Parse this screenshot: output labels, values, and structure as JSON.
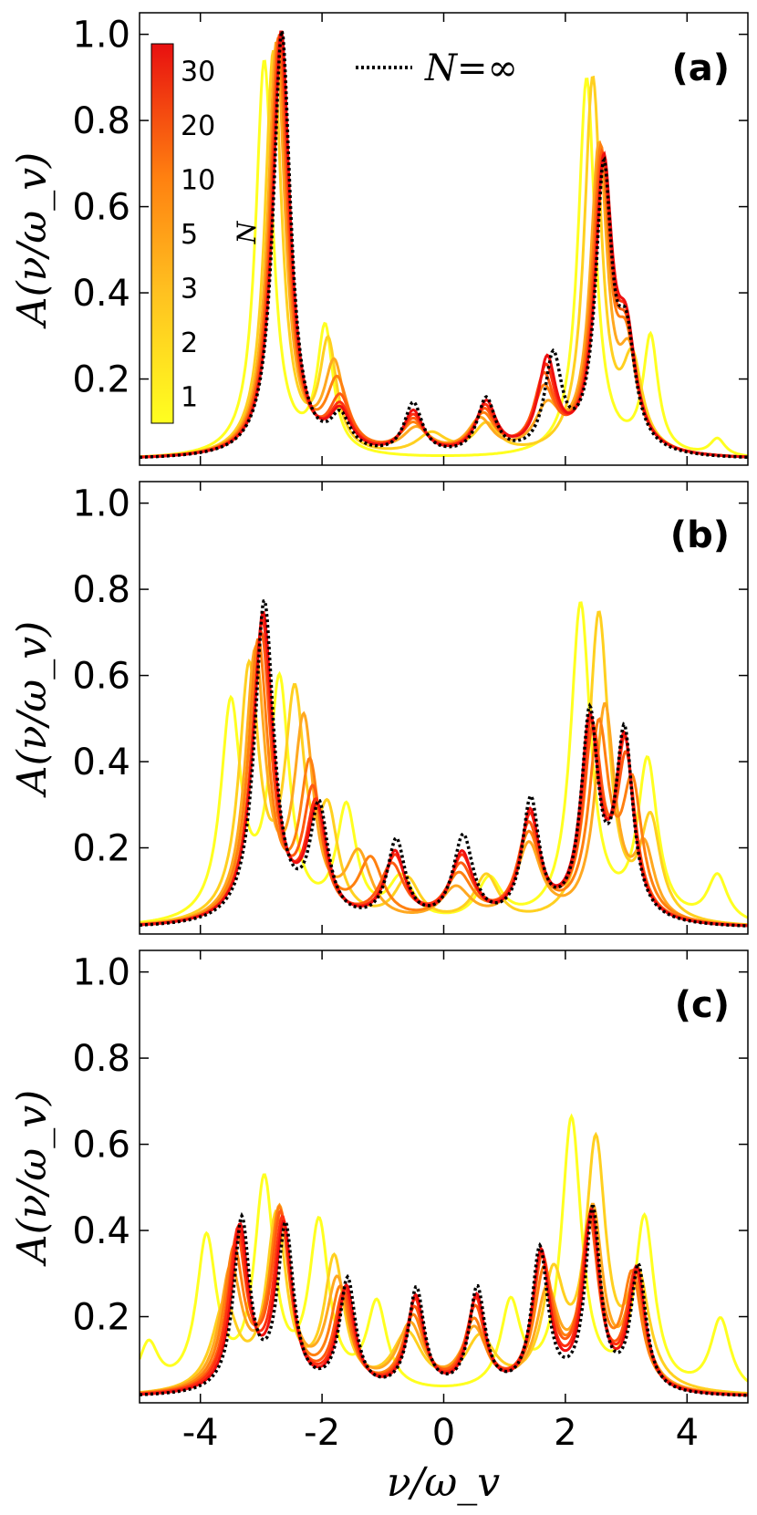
{
  "chart_data": {
    "type": "line",
    "xlabel": "ν/ω_v",
    "ylabel": "A(ν/ω_v)",
    "xlim": [
      -5,
      5
    ],
    "ylim": [
      0,
      1.05
    ],
    "xticks": [
      -4,
      -2,
      0,
      2,
      4
    ],
    "xtick_labels": [
      "-4",
      "-2",
      "0",
      "2",
      "4"
    ],
    "yticks": [
      0.2,
      0.4,
      0.6,
      0.8,
      1.0
    ],
    "ytick_labels": [
      "0.2",
      "0.4",
      "0.6",
      "0.8",
      "1.0"
    ],
    "colorbar": {
      "title": "N",
      "labels": [
        "1",
        "2",
        "3",
        "5",
        "10",
        "20",
        "30"
      ],
      "colors": [
        "#ffff20",
        "#ffd020",
        "#ffa820",
        "#ff8010",
        "#ff5a10",
        "#ff3010",
        "#ee1010"
      ]
    },
    "series_names": [
      "N=1",
      "N=2",
      "N=3",
      "N=5",
      "N=10",
      "N=20",
      "N=30",
      "N=∞"
    ],
    "legend": {
      "label": "N=∞",
      "position": "top-center"
    },
    "panels": [
      {
        "label": "(a)",
        "peaks": [
          [
            [
              -2.95,
              0.92,
              0.17
            ],
            [
              -1.95,
              0.29,
              0.16
            ],
            [
              2.35,
              0.88,
              0.17
            ],
            [
              3.4,
              0.27,
              0.15
            ],
            [
              4.5,
              0.04,
              0.15
            ]
          ],
          [
            [
              -2.8,
              0.94,
              0.17
            ],
            [
              -1.9,
              0.25,
              0.17
            ],
            [
              -0.2,
              0.05,
              0.3
            ],
            [
              0.7,
              0.07,
              0.25
            ],
            [
              2.45,
              0.87,
              0.17
            ],
            [
              3.1,
              0.2,
              0.2
            ]
          ],
          [
            [
              -2.75,
              0.96,
              0.17
            ],
            [
              -1.8,
              0.2,
              0.2
            ],
            [
              -0.45,
              0.06,
              0.28
            ],
            [
              0.6,
              0.08,
              0.25
            ],
            [
              1.7,
              0.1,
              0.25
            ],
            [
              2.55,
              0.7,
              0.17
            ],
            [
              3.05,
              0.2,
              0.2
            ]
          ],
          [
            [
              -2.72,
              0.97,
              0.17
            ],
            [
              -1.75,
              0.16,
              0.22
            ],
            [
              -0.5,
              0.07,
              0.26
            ],
            [
              0.65,
              0.09,
              0.24
            ],
            [
              1.65,
              0.14,
              0.22
            ],
            [
              2.58,
              0.68,
              0.17
            ],
            [
              3.0,
              0.22,
              0.2
            ]
          ],
          [
            [
              -2.7,
              0.98,
              0.17
            ],
            [
              -1.7,
              0.12,
              0.22
            ],
            [
              -0.5,
              0.08,
              0.24
            ],
            [
              0.67,
              0.1,
              0.22
            ],
            [
              1.65,
              0.17,
              0.2
            ],
            [
              2.6,
              0.66,
              0.17
            ],
            [
              3.0,
              0.23,
              0.2
            ]
          ],
          [
            [
              -2.68,
              0.98,
              0.17
            ],
            [
              -1.7,
              0.1,
              0.22
            ],
            [
              -0.5,
              0.09,
              0.22
            ],
            [
              0.68,
              0.11,
              0.21
            ],
            [
              1.68,
              0.19,
              0.19
            ],
            [
              2.62,
              0.65,
              0.17
            ],
            [
              3.0,
              0.24,
              0.19
            ]
          ],
          [
            [
              -2.67,
              0.99,
              0.17
            ],
            [
              -1.7,
              0.09,
              0.22
            ],
            [
              -0.5,
              0.1,
              0.2
            ],
            [
              0.7,
              0.12,
              0.2
            ],
            [
              1.7,
              0.21,
              0.18
            ],
            [
              2.63,
              0.65,
              0.17
            ],
            [
              3.0,
              0.24,
              0.19
            ]
          ],
          [
            [
              -2.66,
              0.99,
              0.17
            ],
            [
              -1.7,
              0.08,
              0.2
            ],
            [
              -0.5,
              0.12,
              0.18
            ],
            [
              0.7,
              0.13,
              0.18
            ],
            [
              1.8,
              0.22,
              0.17
            ],
            [
              2.63,
              0.64,
              0.16
            ],
            [
              3.0,
              0.24,
              0.18
            ]
          ]
        ]
      },
      {
        "label": "(b)",
        "peaks": [
          [
            [
              -3.5,
              0.5,
              0.2
            ],
            [
              -2.7,
              0.55,
              0.2
            ],
            [
              -1.6,
              0.26,
              0.2
            ],
            [
              -0.7,
              0.1,
              0.25
            ],
            [
              0.75,
              0.1,
              0.25
            ],
            [
              2.25,
              0.74,
              0.2
            ],
            [
              3.35,
              0.37,
              0.2
            ],
            [
              4.5,
              0.11,
              0.2
            ]
          ],
          [
            [
              -3.2,
              0.58,
              0.2
            ],
            [
              -2.45,
              0.5,
              0.2
            ],
            [
              -1.9,
              0.22,
              0.2
            ],
            [
              -0.6,
              0.1,
              0.25
            ],
            [
              0.7,
              0.11,
              0.25
            ],
            [
              2.55,
              0.72,
              0.2
            ],
            [
              3.4,
              0.23,
              0.2
            ]
          ],
          [
            [
              -3.1,
              0.62,
              0.2
            ],
            [
              -2.3,
              0.45,
              0.2
            ],
            [
              -1.4,
              0.15,
              0.25
            ],
            [
              0.2,
              0.08,
              0.3
            ],
            [
              1.4,
              0.18,
              0.25
            ],
            [
              2.65,
              0.5,
              0.2
            ],
            [
              3.3,
              0.16,
              0.2
            ]
          ],
          [
            [
              -3.05,
              0.65,
              0.2
            ],
            [
              -2.2,
              0.35,
              0.2
            ],
            [
              -1.2,
              0.14,
              0.25
            ],
            [
              0.25,
              0.11,
              0.28
            ],
            [
              1.4,
              0.2,
              0.24
            ],
            [
              2.55,
              0.44,
              0.2
            ],
            [
              3.1,
              0.3,
              0.2
            ]
          ],
          [
            [
              -3.0,
              0.67,
              0.2
            ],
            [
              -2.15,
              0.29,
              0.2
            ],
            [
              -0.85,
              0.13,
              0.25
            ],
            [
              0.28,
              0.13,
              0.26
            ],
            [
              1.4,
              0.22,
              0.22
            ],
            [
              2.45,
              0.42,
              0.19
            ],
            [
              3.0,
              0.36,
              0.19
            ]
          ],
          [
            [
              -2.98,
              0.7,
              0.2
            ],
            [
              -2.1,
              0.26,
              0.2
            ],
            [
              -0.8,
              0.15,
              0.22
            ],
            [
              0.3,
              0.15,
              0.24
            ],
            [
              1.42,
              0.24,
              0.2
            ],
            [
              2.42,
              0.44,
              0.18
            ],
            [
              2.98,
              0.4,
              0.18
            ]
          ],
          [
            [
              -2.97,
              0.72,
              0.2
            ],
            [
              -2.08,
              0.25,
              0.2
            ],
            [
              -0.8,
              0.16,
              0.2
            ],
            [
              0.3,
              0.16,
              0.22
            ],
            [
              1.42,
              0.25,
              0.19
            ],
            [
              2.4,
              0.45,
              0.18
            ],
            [
              2.97,
              0.41,
              0.18
            ]
          ],
          [
            [
              -2.95,
              0.75,
              0.19
            ],
            [
              -2.05,
              0.26,
              0.18
            ],
            [
              -0.78,
              0.19,
              0.18
            ],
            [
              0.32,
              0.2,
              0.2
            ],
            [
              1.43,
              0.28,
              0.17
            ],
            [
              2.4,
              0.47,
              0.17
            ],
            [
              2.97,
              0.43,
              0.17
            ]
          ]
        ]
      },
      {
        "label": "(c)",
        "peaks": [
          [
            [
              -4.85,
              0.11,
              0.2
            ],
            [
              -3.9,
              0.35,
              0.2
            ],
            [
              -2.95,
              0.48,
              0.2
            ],
            [
              -2.05,
              0.38,
              0.2
            ],
            [
              -1.1,
              0.2,
              0.2
            ],
            [
              1.1,
              0.2,
              0.2
            ],
            [
              2.1,
              0.63,
              0.2
            ],
            [
              3.3,
              0.4,
              0.2
            ],
            [
              4.55,
              0.17,
              0.2
            ]
          ],
          [
            [
              -3.6,
              0.2,
              0.25
            ],
            [
              -2.75,
              0.4,
              0.2
            ],
            [
              -1.8,
              0.3,
              0.2
            ],
            [
              -0.6,
              0.13,
              0.3
            ],
            [
              0.6,
              0.12,
              0.3
            ],
            [
              1.8,
              0.25,
              0.22
            ],
            [
              2.5,
              0.56,
              0.2
            ],
            [
              3.2,
              0.25,
              0.22
            ]
          ],
          [
            [
              -3.5,
              0.28,
              0.22
            ],
            [
              -2.7,
              0.41,
              0.2
            ],
            [
              -1.75,
              0.25,
              0.22
            ],
            [
              -0.55,
              0.15,
              0.26
            ],
            [
              0.5,
              0.14,
              0.26
            ],
            [
              1.7,
              0.22,
              0.22
            ],
            [
              2.45,
              0.41,
              0.2
            ],
            [
              3.15,
              0.23,
              0.2
            ]
          ],
          [
            [
              -3.45,
              0.32,
              0.2
            ],
            [
              -2.7,
              0.41,
              0.2
            ],
            [
              -1.7,
              0.23,
              0.2
            ],
            [
              -0.5,
              0.17,
              0.22
            ],
            [
              0.5,
              0.16,
              0.22
            ],
            [
              1.65,
              0.27,
              0.2
            ],
            [
              2.42,
              0.38,
              0.19
            ],
            [
              3.1,
              0.26,
              0.19
            ]
          ],
          [
            [
              -3.4,
              0.35,
              0.19
            ],
            [
              -2.68,
              0.4,
              0.19
            ],
            [
              -1.65,
              0.22,
              0.19
            ],
            [
              -0.48,
              0.19,
              0.2
            ],
            [
              0.52,
              0.19,
              0.2
            ],
            [
              1.62,
              0.3,
              0.19
            ],
            [
              2.4,
              0.38,
              0.18
            ],
            [
              3.15,
              0.27,
              0.18
            ]
          ],
          [
            [
              -3.38,
              0.37,
              0.18
            ],
            [
              -2.65,
              0.39,
              0.18
            ],
            [
              -1.62,
              0.23,
              0.18
            ],
            [
              -0.47,
              0.21,
              0.18
            ],
            [
              0.53,
              0.21,
              0.18
            ],
            [
              1.6,
              0.31,
              0.18
            ],
            [
              2.42,
              0.4,
              0.17
            ],
            [
              3.17,
              0.28,
              0.17
            ]
          ],
          [
            [
              -3.35,
              0.38,
              0.17
            ],
            [
              -2.63,
              0.38,
              0.17
            ],
            [
              -1.6,
              0.24,
              0.17
            ],
            [
              -0.46,
              0.22,
              0.17
            ],
            [
              0.54,
              0.22,
              0.17
            ],
            [
              1.6,
              0.32,
              0.17
            ],
            [
              2.43,
              0.41,
              0.16
            ],
            [
              3.18,
              0.28,
              0.16
            ]
          ],
          [
            [
              -3.32,
              0.4,
              0.16
            ],
            [
              -2.6,
              0.38,
              0.16
            ],
            [
              -1.58,
              0.26,
              0.16
            ],
            [
              -0.45,
              0.24,
              0.16
            ],
            [
              0.55,
              0.24,
              0.16
            ],
            [
              1.58,
              0.33,
              0.16
            ],
            [
              2.45,
              0.42,
              0.15
            ],
            [
              3.2,
              0.29,
              0.15
            ]
          ]
        ]
      }
    ]
  }
}
